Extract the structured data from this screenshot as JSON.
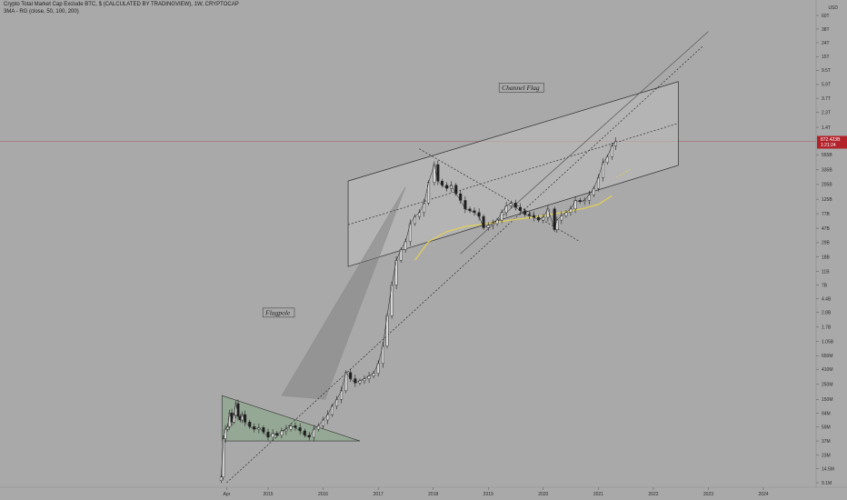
{
  "header": {
    "title": "Crypto Total Market Cap Exclude BTC, $ (CALCULATED BY TRADINGVIEW), 1W, CRYPTOCAP",
    "indicator": "3MA - RG (close, 50, 100, 200)"
  },
  "colors": {
    "background": "#a9a9a9",
    "price_badge": "#b2222b",
    "candle": "#1f1f1f",
    "ma": "#e8d24a",
    "flag_fill": "#8fa88f",
    "channel_fill": "#bdbdbd"
  },
  "chart_data": {
    "type": "line",
    "title": "Crypto Total Market Cap Exclude BTC, $ (CALCULATED BY TRADINGVIEW), 1W, CRYPTOCAP",
    "y_scale": "log",
    "ylim": [
      9100000,
      100000000000000
    ],
    "currency_label": "USD",
    "y_ticks": [
      {
        "label": "60T",
        "value": 60000000000000
      },
      {
        "label": "38T",
        "value": 38000000000000
      },
      {
        "label": "24T",
        "value": 24000000000000
      },
      {
        "label": "15T",
        "value": 15000000000000
      },
      {
        "label": "9.5T",
        "value": 9500000000000
      },
      {
        "label": "5.9T",
        "value": 5900000000000
      },
      {
        "label": "3.7T",
        "value": 3700000000000
      },
      {
        "label": "2.3T",
        "value": 2300000000000
      },
      {
        "label": "1.4T",
        "value": 1400000000000
      },
      {
        "label": "555B",
        "value": 555000000000
      },
      {
        "label": "335B",
        "value": 335000000000
      },
      {
        "label": "205B",
        "value": 205000000000
      },
      {
        "label": "125B",
        "value": 125000000000
      },
      {
        "label": "77B",
        "value": 77000000000
      },
      {
        "label": "47B",
        "value": 47000000000
      },
      {
        "label": "29B",
        "value": 29000000000
      },
      {
        "label": "18B",
        "value": 18000000000
      },
      {
        "label": "11B",
        "value": 11000000000
      },
      {
        "label": "7B",
        "value": 7000000000
      },
      {
        "label": "4.4B",
        "value": 4400000000
      },
      {
        "label": "2.8B",
        "value": 2800000000
      },
      {
        "label": "1.7B",
        "value": 1700000000
      },
      {
        "label": "1.05B",
        "value": 1050000000
      },
      {
        "label": "650M",
        "value": 650000000
      },
      {
        "label": "410M",
        "value": 410000000
      },
      {
        "label": "250M",
        "value": 250000000
      },
      {
        "label": "150M",
        "value": 150000000
      },
      {
        "label": "94M",
        "value": 94000000
      },
      {
        "label": "59M",
        "value": 59000000
      },
      {
        "label": "37M",
        "value": 37000000
      },
      {
        "label": "23M",
        "value": 23000000
      },
      {
        "label": "14.5M",
        "value": 14500000
      },
      {
        "label": "9.1M",
        "value": 9100000
      }
    ],
    "x_ticks": [
      {
        "label": "Apr",
        "date": "2014-04-01"
      },
      {
        "label": "2015",
        "date": "2015-01-01"
      },
      {
        "label": "2016",
        "date": "2016-01-01"
      },
      {
        "label": "2017",
        "date": "2017-01-01"
      },
      {
        "label": "2018",
        "date": "2018-01-01"
      },
      {
        "label": "2019",
        "date": "2019-01-01"
      },
      {
        "label": "2020",
        "date": "2020-01-01"
      },
      {
        "label": "2021",
        "date": "2021-01-01"
      },
      {
        "label": "2022",
        "date": "2022-01-01"
      },
      {
        "label": "2023",
        "date": "2023-01-01"
      },
      {
        "label": "2024",
        "date": "2024-01-01"
      }
    ],
    "current_price": {
      "label": "872.423B",
      "countdown": "1:21:24",
      "value": 872423000000
    },
    "series": [
      {
        "type": "candlestick",
        "points": [
          [
            "2014-02-24",
            11000000
          ],
          [
            "2014-03-10",
            40000000
          ],
          [
            "2014-03-24",
            55000000
          ],
          [
            "2014-04-07",
            60000000
          ],
          [
            "2014-04-21",
            95000000
          ],
          [
            "2014-05-05",
            70000000
          ],
          [
            "2014-05-19",
            88000000
          ],
          [
            "2014-06-02",
            130000000
          ],
          [
            "2014-06-16",
            85000000
          ],
          [
            "2014-06-30",
            75000000
          ],
          [
            "2014-07-14",
            90000000
          ],
          [
            "2014-08-01",
            70000000
          ],
          [
            "2014-09-01",
            60000000
          ],
          [
            "2014-10-01",
            55000000
          ],
          [
            "2014-11-01",
            58000000
          ],
          [
            "2014-12-01",
            50000000
          ],
          [
            "2015-01-01",
            42000000
          ],
          [
            "2015-02-01",
            48000000
          ],
          [
            "2015-03-01",
            45000000
          ],
          [
            "2015-04-01",
            52000000
          ],
          [
            "2015-05-01",
            55000000
          ],
          [
            "2015-06-01",
            62000000
          ],
          [
            "2015-07-01",
            58000000
          ],
          [
            "2015-08-01",
            52000000
          ],
          [
            "2015-09-01",
            45000000
          ],
          [
            "2015-10-01",
            42000000
          ],
          [
            "2015-11-01",
            55000000
          ],
          [
            "2015-12-01",
            62000000
          ],
          [
            "2016-01-01",
            75000000
          ],
          [
            "2016-02-01",
            90000000
          ],
          [
            "2016-03-01",
            120000000
          ],
          [
            "2016-04-01",
            150000000
          ],
          [
            "2016-05-01",
            200000000
          ],
          [
            "2016-06-01",
            370000000
          ],
          [
            "2016-07-01",
            300000000
          ],
          [
            "2016-08-01",
            260000000
          ],
          [
            "2016-09-01",
            280000000
          ],
          [
            "2016-10-01",
            300000000
          ],
          [
            "2016-11-01",
            330000000
          ],
          [
            "2016-12-01",
            360000000
          ],
          [
            "2017-01-01",
            500000000
          ],
          [
            "2017-02-01",
            900000000
          ],
          [
            "2017-03-01",
            2500000000
          ],
          [
            "2017-04-01",
            7000000000
          ],
          [
            "2017-05-01",
            16000000000
          ],
          [
            "2017-06-01",
            23000000000
          ],
          [
            "2017-07-01",
            30000000000
          ],
          [
            "2017-08-01",
            55000000000
          ],
          [
            "2017-09-01",
            70000000000
          ],
          [
            "2017-10-01",
            80000000000
          ],
          [
            "2017-11-01",
            110000000000
          ],
          [
            "2017-12-01",
            220000000000
          ],
          [
            "2018-01-08",
            400000000000
          ],
          [
            "2018-02-01",
            230000000000
          ],
          [
            "2018-03-01",
            200000000000
          ],
          [
            "2018-04-01",
            180000000000
          ],
          [
            "2018-05-01",
            200000000000
          ],
          [
            "2018-06-01",
            150000000000
          ],
          [
            "2018-07-01",
            120000000000
          ],
          [
            "2018-08-01",
            90000000000
          ],
          [
            "2018-09-01",
            85000000000
          ],
          [
            "2018-10-01",
            80000000000
          ],
          [
            "2018-11-01",
            70000000000
          ],
          [
            "2018-12-01",
            48000000000
          ],
          [
            "2019-01-01",
            52000000000
          ],
          [
            "2019-02-01",
            55000000000
          ],
          [
            "2019-03-01",
            62000000000
          ],
          [
            "2019-04-01",
            80000000000
          ],
          [
            "2019-05-01",
            100000000000
          ],
          [
            "2019-06-01",
            110000000000
          ],
          [
            "2019-07-01",
            95000000000
          ],
          [
            "2019-08-01",
            85000000000
          ],
          [
            "2019-09-01",
            75000000000
          ],
          [
            "2019-10-01",
            72000000000
          ],
          [
            "2019-11-01",
            68000000000
          ],
          [
            "2019-12-01",
            62000000000
          ],
          [
            "2020-01-01",
            68000000000
          ],
          [
            "2020-02-01",
            90000000000
          ],
          [
            "2020-03-16",
            45000000000
          ],
          [
            "2020-04-01",
            62000000000
          ],
          [
            "2020-05-01",
            72000000000
          ],
          [
            "2020-06-01",
            80000000000
          ],
          [
            "2020-07-01",
            90000000000
          ],
          [
            "2020-08-01",
            120000000000
          ],
          [
            "2020-09-01",
            115000000000
          ],
          [
            "2020-10-01",
            120000000000
          ],
          [
            "2020-11-01",
            145000000000
          ],
          [
            "2020-12-01",
            180000000000
          ],
          [
            "2021-01-01",
            260000000000
          ],
          [
            "2021-02-01",
            430000000000
          ],
          [
            "2021-03-01",
            520000000000
          ],
          [
            "2021-04-01",
            750000000000
          ],
          [
            "2021-04-26",
            872423000000
          ]
        ]
      },
      {
        "name": "",
        "type": "ma",
        "points": [
          [
            "2017-09-01",
            16000000000
          ],
          [
            "2017-12-01",
            30000000000
          ],
          [
            "2018-04-01",
            42000000000
          ],
          [
            "2018-08-01",
            50000000000
          ],
          [
            "2019-01-01",
            55000000000
          ],
          [
            "2019-06-01",
            62000000000
          ],
          [
            "2019-12-01",
            70000000000
          ],
          [
            "2020-06-01",
            82000000000
          ],
          [
            "2020-10-01",
            92000000000
          ],
          [
            "2021-01-01",
            105000000000
          ],
          [
            "2021-04-01",
            140000000000
          ]
        ]
      },
      {
        "name": "",
        "type": "ma-projection",
        "points": [
          [
            "2021-05-01",
            260000000000
          ],
          [
            "2021-08-01",
            340000000000
          ]
        ]
      }
    ],
    "annotations": [
      {
        "text": "Channel Flag",
        "at": [
          "2019-04-01",
          5000000000000
        ],
        "channel_top": [
          [
            "2016-06-15",
            230000000000
          ],
          [
            "2022-06-15",
            6500000000000
          ]
        ],
        "channel_bottom": [
          [
            "2016-06-15",
            13000000000
          ],
          [
            "2022-06-15",
            390000000000
          ]
        ]
      },
      {
        "text": "Flagpole",
        "at": [
          "2014-12-15",
          2600000000
        ],
        "pole": [
          [
            "2015-04-01",
            170000000
          ],
          [
            "2016-01-15",
            150000000
          ],
          [
            "2017-07-01",
            190000000000
          ]
        ]
      },
      {
        "text": "",
        "pennant": [
          [
            "2014-03-01",
            170000000
          ],
          [
            "2016-09-01",
            37000000
          ],
          [
            "2014-03-01",
            37000000
          ]
        ]
      },
      {
        "text": "",
        "trend_line": [
          [
            "2014-04-01",
            9100000
          ],
          [
            "2022-12-01",
            22000000000000
          ]
        ],
        "style": "dashed"
      },
      {
        "text": "",
        "trend_line": [
          [
            "2017-10-01",
            680000000000
          ],
          [
            "2020-09-01",
            30000000000
          ]
        ],
        "style": "dashed"
      },
      {
        "text": "",
        "trend_line": [
          [
            "2016-06-15",
            53000000000
          ],
          [
            "2022-06-15",
            1600000000000
          ]
        ],
        "style": "dashed"
      },
      {
        "text": "",
        "trend_line": [
          [
            "2018-07-01",
            20000000000
          ],
          [
            "2023-01-01",
            35000000000000
          ]
        ],
        "style": "solid"
      }
    ]
  }
}
